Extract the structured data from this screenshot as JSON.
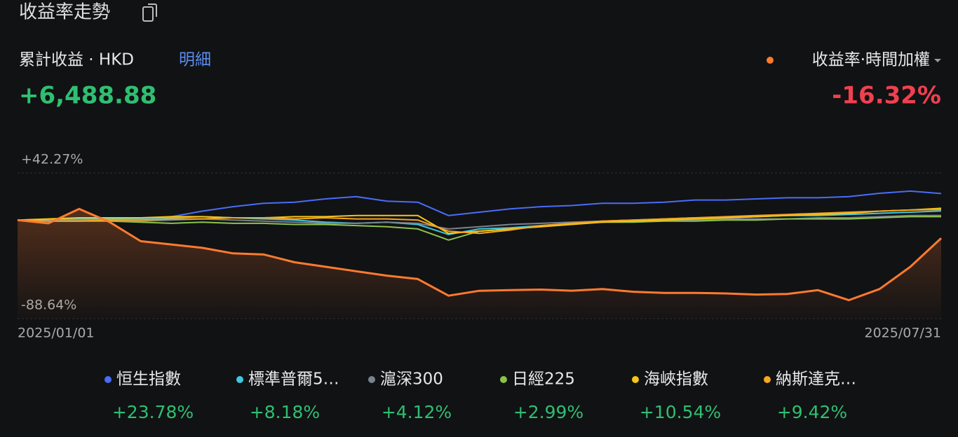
{
  "header": {
    "title": "收益率走勢",
    "label": "累計收益 · HKD",
    "detail_link": "明細",
    "total": {
      "value": 6488.88,
      "label": "+6,488.88"
    }
  },
  "chart_data": {
    "type": "line",
    "xlim": [
      "2025/01/01",
      "2025/07/31"
    ],
    "ylim": [
      -88.64,
      42.27
    ],
    "yticks": [
      {
        "value": 42.27,
        "label": "+42.27%"
      },
      {
        "value": -88.64,
        "label": "-88.64%"
      }
    ],
    "grid": true,
    "series": [
      {
        "name": "收益率·時間加權",
        "color": "#ff7a2f",
        "area": true,
        "return": {
          "value": -16.32,
          "label": "-16.32%"
        },
        "values": [
          0,
          -3,
          10,
          -2,
          -19,
          -22,
          -25,
          -30,
          -31,
          -38,
          -42,
          -46,
          -50,
          -53,
          -68,
          -63.6,
          -63,
          -62.5,
          -63.5,
          -62,
          -64.5,
          -65.5,
          -65.5,
          -66,
          -67,
          -66.5,
          -63,
          -72,
          -62,
          -42,
          -16.32
        ]
      },
      {
        "name": "恒生指數",
        "color": "#4a6cf7",
        "return": {
          "value": 23.78,
          "label": "+23.78%"
        },
        "values": [
          0,
          0.5,
          0,
          0.5,
          1,
          3,
          8,
          12,
          15,
          16,
          19,
          21,
          17,
          16,
          4,
          7,
          10,
          12,
          13,
          15,
          15,
          16,
          18,
          18,
          19,
          20,
          20,
          21,
          24,
          26,
          23.78
        ]
      },
      {
        "name": "標準普爾5…",
        "color": "#3fc9e0",
        "return": {
          "value": 8.18,
          "label": "+8.18%"
        },
        "values": [
          0,
          0.5,
          1,
          1,
          1.5,
          2,
          3,
          2,
          1,
          0,
          -2,
          -3,
          -2,
          -4,
          -13,
          -8,
          -7,
          -5,
          -3,
          -1,
          0,
          1,
          2,
          2,
          3,
          4,
          4,
          5,
          6,
          7,
          8.18
        ]
      },
      {
        "name": "滬深300",
        "color": "#7a8290",
        "return": {
          "value": 4.12,
          "label": "+4.12%"
        },
        "values": [
          0,
          -1,
          0,
          -1,
          -1,
          0,
          1,
          0,
          -1,
          -2,
          -3,
          -3,
          -2,
          -3,
          -8,
          -6,
          -4,
          -3,
          -2,
          -1,
          -1,
          0,
          0,
          1,
          1,
          1,
          2,
          2,
          3,
          4,
          4.12
        ]
      },
      {
        "name": "日經225",
        "color": "#8bc34a",
        "return": {
          "value": 2.99,
          "label": "+2.99%"
        },
        "values": [
          0,
          -1,
          -1,
          -1,
          -2,
          -3,
          -2,
          -3,
          -3,
          -4,
          -4,
          -5,
          -6,
          -8,
          -18,
          -10,
          -8,
          -6,
          -3,
          -2,
          -2,
          -1,
          -1,
          0,
          0,
          1,
          1,
          1,
          2,
          3,
          2.99
        ]
      },
      {
        "name": "海峽指數",
        "color": "#f5c518",
        "return": {
          "value": 10.54,
          "label": "+10.54%"
        },
        "values": [
          0,
          1,
          2,
          2,
          2,
          3,
          3,
          2,
          2,
          3,
          3,
          4,
          4,
          4,
          -12,
          -10,
          -8,
          -6,
          -4,
          -2,
          -1,
          0,
          1,
          2,
          3,
          4,
          5,
          6,
          8,
          9,
          10.54
        ]
      },
      {
        "name": "納斯達克…",
        "color": "#f5a623",
        "return": {
          "value": 9.42,
          "label": "+9.42%"
        },
        "values": [
          0,
          -1,
          -1,
          0,
          0,
          1,
          1,
          2,
          2,
          1,
          2,
          1,
          1,
          0,
          -10,
          -12,
          -9,
          -5,
          -3,
          -1,
          0,
          1,
          2,
          3,
          4,
          5,
          6,
          7,
          8,
          9,
          9.42
        ]
      }
    ]
  }
}
